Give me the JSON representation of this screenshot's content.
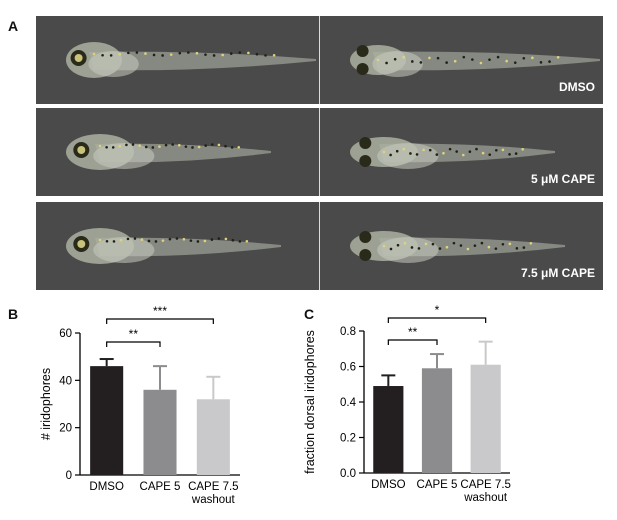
{
  "panels": {
    "a": "A",
    "b": "B",
    "c": "C"
  },
  "conditions": [
    "DMSO",
    "5 μM CAPE",
    "7.5 μM CAPE"
  ],
  "chart_data": [
    {
      "type": "bar",
      "panel": "B",
      "categories": [
        "DMSO",
        "CAPE 5",
        "CAPE 7.5\nwashout"
      ],
      "values": [
        46,
        36,
        32
      ],
      "errors": [
        3,
        10,
        9.5
      ],
      "ylabel": "# iridophores",
      "xlabel": "",
      "ylim": [
        0,
        60
      ],
      "yticks": [
        "0",
        "20",
        "40",
        "60"
      ],
      "bar_colors": [
        "#231f20",
        "#8c8c8e",
        "#c9c9cb"
      ],
      "significance": [
        {
          "from": 0,
          "to": 1,
          "label": "**"
        },
        {
          "from": 0,
          "to": 2,
          "label": "***"
        }
      ]
    },
    {
      "type": "bar",
      "panel": "C",
      "categories": [
        "DMSO",
        "CAPE 5",
        "CAPE 7.5\nwashout"
      ],
      "values": [
        0.49,
        0.59,
        0.61
      ],
      "errors": [
        0.06,
        0.08,
        0.13
      ],
      "ylabel": "fraction dorsal iridophores",
      "xlabel": "",
      "ylim": [
        0,
        0.8
      ],
      "yticks": [
        "0.0",
        "0.2",
        "0.4",
        "0.6",
        "0.8"
      ],
      "bar_colors": [
        "#231f20",
        "#8c8c8e",
        "#c9c9cb"
      ],
      "significance": [
        {
          "from": 0,
          "to": 1,
          "label": "**"
        },
        {
          "from": 0,
          "to": 2,
          "label": "*"
        }
      ]
    }
  ]
}
